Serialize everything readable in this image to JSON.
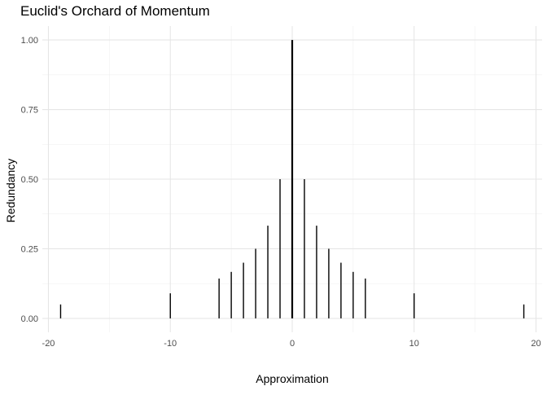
{
  "chart_data": {
    "type": "bar",
    "title": "Euclid's Orchard of Momentum",
    "xlabel": "Approximation",
    "ylabel": "Redundancy",
    "xlim": [
      -20.5,
      20.5
    ],
    "ylim": [
      -0.05,
      1.05
    ],
    "x_ticks": [
      -20,
      -10,
      0,
      10,
      20
    ],
    "x_tick_labels": [
      "-20",
      "-10",
      "0",
      "10",
      "20"
    ],
    "y_ticks": [
      0,
      0.25,
      0.5,
      0.75,
      1.0
    ],
    "y_tick_labels": [
      "0.00",
      "0.25",
      "0.50",
      "0.75",
      "1.00"
    ],
    "grid": true,
    "bar_color": "#000000",
    "points": [
      {
        "x": -19,
        "y": 0.05
      },
      {
        "x": -10,
        "y": 0.09
      },
      {
        "x": -6,
        "y": 0.143
      },
      {
        "x": -5,
        "y": 0.167
      },
      {
        "x": -4,
        "y": 0.2
      },
      {
        "x": -3,
        "y": 0.25
      },
      {
        "x": -2,
        "y": 0.333
      },
      {
        "x": -1,
        "y": 0.5
      },
      {
        "x": 0,
        "y": 1.0
      },
      {
        "x": 1,
        "y": 0.5
      },
      {
        "x": 2,
        "y": 0.333
      },
      {
        "x": 3,
        "y": 0.25
      },
      {
        "x": 4,
        "y": 0.2
      },
      {
        "x": 5,
        "y": 0.167
      },
      {
        "x": 6,
        "y": 0.143
      },
      {
        "x": 10,
        "y": 0.09
      },
      {
        "x": 19,
        "y": 0.05
      }
    ]
  }
}
